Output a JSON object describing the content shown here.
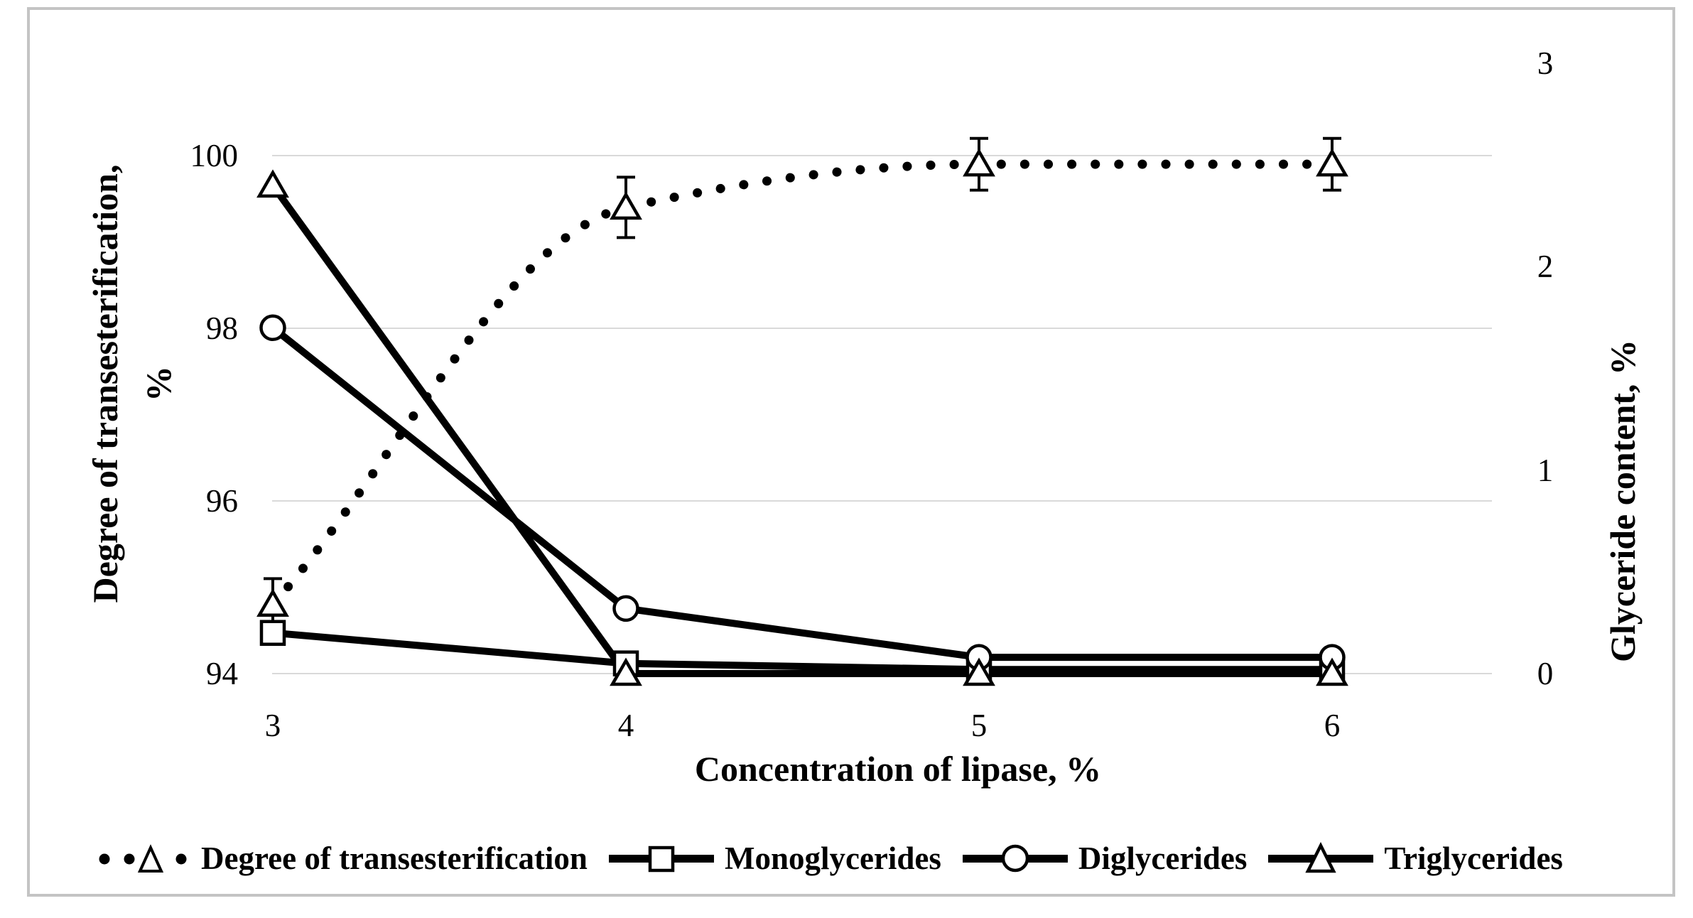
{
  "chart_data": {
    "type": "line",
    "x": [
      3,
      4,
      5,
      6
    ],
    "x_axis": {
      "label": "Concentration of lipase, %",
      "ticks": [
        3,
        4,
        5,
        6
      ],
      "range": [
        3,
        6
      ]
    },
    "left_axis": {
      "label": "Degree of transesterification, %",
      "label_line1": "Degree of transesterification,",
      "label_line2": "%",
      "ticks": [
        100,
        98,
        96,
        94
      ],
      "range": [
        94,
        100
      ]
    },
    "right_axis": {
      "label": "Glyceride content, %",
      "ticks": [
        3,
        2,
        1,
        0
      ],
      "range": [
        0,
        3
      ]
    },
    "series": [
      {
        "name": "Degree of transesterification",
        "axis": "left",
        "line": "dotted",
        "smooth": true,
        "marker": "triangle",
        "values": [
          94.8,
          99.4,
          99.9,
          99.9
        ],
        "error": [
          0.3,
          0.35,
          0.3,
          0.3
        ]
      },
      {
        "name": "Monoglycerides",
        "axis": "right",
        "line": "solid",
        "marker": "square",
        "values": [
          0.2,
          0.05,
          0.02,
          0.02
        ]
      },
      {
        "name": "Diglycerides",
        "axis": "right",
        "line": "solid",
        "marker": "circle",
        "values": [
          1.7,
          0.32,
          0.08,
          0.08
        ]
      },
      {
        "name": "Triglycerides",
        "axis": "right",
        "line": "solid",
        "marker": "triangle",
        "values": [
          2.4,
          0.0,
          0.0,
          0.0
        ]
      }
    ],
    "grid": "horizontal",
    "legend_position": "bottom",
    "colors": {
      "series": "#000000",
      "marker_fill": "#ffffff",
      "gridline": "#d9d9d9",
      "frame": "#c4c4c4",
      "background": "#ffffff"
    }
  },
  "legend": {
    "items": [
      {
        "label": "Degree of transesterification",
        "marker": "dotted-triangle"
      },
      {
        "label": "Monoglycerides",
        "marker": "line-square"
      },
      {
        "label": "Diglycerides",
        "marker": "line-circle"
      },
      {
        "label": "Triglycerides",
        "marker": "line-triangle"
      }
    ]
  }
}
